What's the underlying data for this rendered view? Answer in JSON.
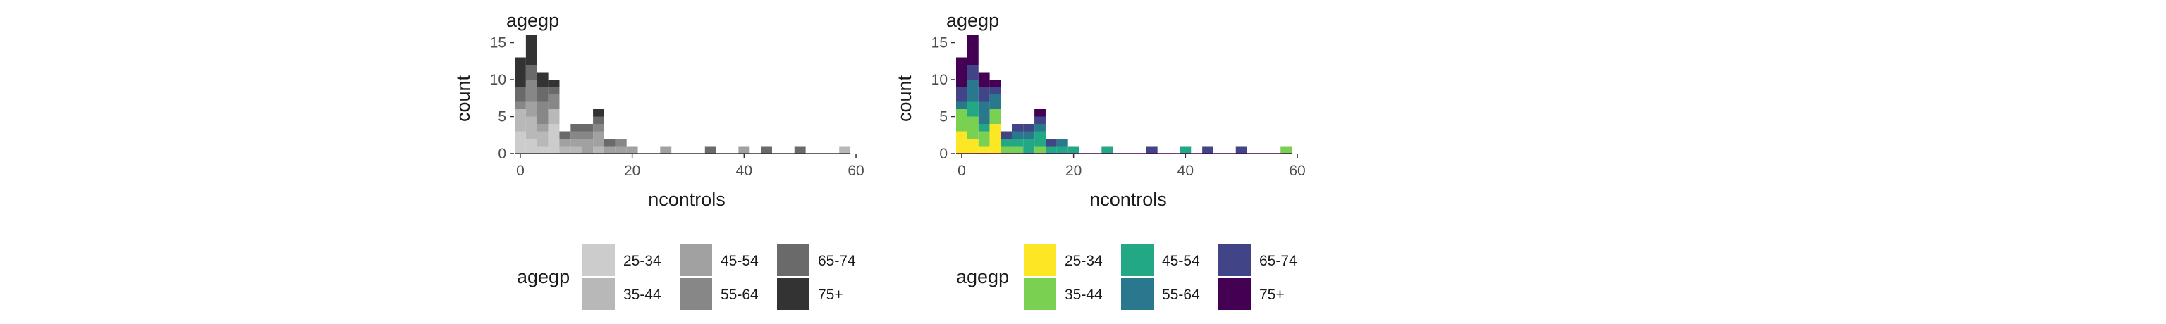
{
  "chart_data": [
    {
      "type": "bar",
      "stacked": true,
      "title": "agegp",
      "xlabel": "ncontrols",
      "ylabel": "count",
      "xlim": [
        -1,
        60.5
      ],
      "ylim": [
        0,
        16
      ],
      "xticks": [
        0,
        20,
        40,
        60
      ],
      "yticks": [
        0,
        5,
        10,
        15
      ],
      "bin_width": 2,
      "bins": [
        0,
        2,
        4,
        6,
        8,
        10,
        12,
        14,
        16,
        18,
        20,
        22,
        24,
        26,
        28,
        30,
        32,
        34,
        36,
        38,
        40,
        42,
        44,
        46,
        48,
        50,
        52,
        54,
        56,
        58
      ],
      "grid": false,
      "legend_position": "bottom",
      "legend_title": "agegp",
      "series": [
        {
          "name": "25-34",
          "color": "#cccccc",
          "values": [
            3,
            2,
            1,
            4,
            0,
            0,
            0,
            0,
            0,
            0,
            0,
            0,
            0,
            0,
            0,
            0,
            0,
            0,
            0,
            0,
            0,
            0,
            0,
            0,
            0,
            0,
            0,
            0,
            0,
            0
          ]
        },
        {
          "name": "35-44",
          "color": "#b8b8b8",
          "values": [
            3,
            3,
            2,
            2,
            1,
            1,
            0,
            1,
            0,
            0,
            0,
            0,
            0,
            0,
            0,
            0,
            0,
            0,
            0,
            0,
            0,
            0,
            0,
            0,
            0,
            0,
            0,
            0,
            0,
            1
          ]
        },
        {
          "name": "45-54",
          "color": "#a1a1a1",
          "values": [
            0,
            2,
            1,
            0,
            1,
            1,
            2,
            2,
            1,
            1,
            1,
            0,
            0,
            1,
            0,
            0,
            0,
            0,
            0,
            0,
            1,
            0,
            0,
            0,
            0,
            0,
            0,
            0,
            0,
            0
          ]
        },
        {
          "name": "55-64",
          "color": "#878787",
          "values": [
            1,
            3,
            3,
            2,
            0,
            1,
            1,
            1,
            0,
            1,
            0,
            0,
            0,
            0,
            0,
            0,
            0,
            0,
            0,
            0,
            0,
            0,
            0,
            0,
            0,
            0,
            0,
            0,
            0,
            0
          ]
        },
        {
          "name": "65-74",
          "color": "#6a6a6a",
          "values": [
            2,
            2,
            2,
            1,
            1,
            1,
            1,
            1,
            1,
            0,
            0,
            0,
            0,
            0,
            0,
            0,
            0,
            1,
            0,
            0,
            0,
            0,
            1,
            0,
            0,
            1,
            0,
            0,
            0,
            0
          ]
        },
        {
          "name": "75+",
          "color": "#333333",
          "values": [
            4,
            4,
            2,
            1,
            0,
            0,
            0,
            1,
            0,
            0,
            0,
            0,
            0,
            0,
            0,
            0,
            0,
            0,
            0,
            0,
            0,
            0,
            0,
            0,
            0,
            0,
            0,
            0,
            0,
            0
          ]
        }
      ]
    },
    {
      "type": "bar",
      "stacked": true,
      "title": "agegp",
      "xlabel": "ncontrols",
      "ylabel": "count",
      "xlim": [
        -1,
        60.5
      ],
      "ylim": [
        0,
        16
      ],
      "xticks": [
        0,
        20,
        40,
        60
      ],
      "yticks": [
        0,
        5,
        10,
        15
      ],
      "bin_width": 2,
      "bins": [
        0,
        2,
        4,
        6,
        8,
        10,
        12,
        14,
        16,
        18,
        20,
        22,
        24,
        26,
        28,
        30,
        32,
        34,
        36,
        38,
        40,
        42,
        44,
        46,
        48,
        50,
        52,
        54,
        56,
        58
      ],
      "grid": false,
      "legend_position": "bottom",
      "legend_title": "agegp",
      "series": [
        {
          "name": "25-34",
          "color": "#fde725",
          "values": [
            3,
            2,
            1,
            4,
            0,
            0,
            0,
            0,
            0,
            0,
            0,
            0,
            0,
            0,
            0,
            0,
            0,
            0,
            0,
            0,
            0,
            0,
            0,
            0,
            0,
            0,
            0,
            0,
            0,
            0
          ]
        },
        {
          "name": "35-44",
          "color": "#7ad151",
          "values": [
            3,
            3,
            2,
            2,
            1,
            1,
            0,
            1,
            0,
            0,
            0,
            0,
            0,
            0,
            0,
            0,
            0,
            0,
            0,
            0,
            0,
            0,
            0,
            0,
            0,
            0,
            0,
            0,
            0,
            1
          ]
        },
        {
          "name": "45-54",
          "color": "#22a884",
          "values": [
            0,
            2,
            1,
            0,
            1,
            1,
            2,
            2,
            1,
            1,
            1,
            0,
            0,
            1,
            0,
            0,
            0,
            0,
            0,
            0,
            1,
            0,
            0,
            0,
            0,
            0,
            0,
            0,
            0,
            0
          ]
        },
        {
          "name": "55-64",
          "color": "#2a788e",
          "values": [
            1,
            3,
            3,
            2,
            0,
            1,
            1,
            1,
            0,
            1,
            0,
            0,
            0,
            0,
            0,
            0,
            0,
            0,
            0,
            0,
            0,
            0,
            0,
            0,
            0,
            0,
            0,
            0,
            0,
            0
          ]
        },
        {
          "name": "65-74",
          "color": "#414487",
          "values": [
            2,
            2,
            2,
            1,
            1,
            1,
            1,
            1,
            1,
            0,
            0,
            0,
            0,
            0,
            0,
            0,
            0,
            1,
            0,
            0,
            0,
            0,
            1,
            0,
            0,
            1,
            0,
            0,
            0,
            0
          ]
        },
        {
          "name": "75+",
          "color": "#440154",
          "values": [
            4,
            4,
            2,
            1,
            0,
            0,
            0,
            1,
            0,
            0,
            0,
            0,
            0,
            0,
            0,
            0,
            0,
            0,
            0,
            0,
            0,
            0,
            0,
            0,
            0,
            0,
            0,
            0,
            0,
            0
          ]
        }
      ]
    }
  ]
}
